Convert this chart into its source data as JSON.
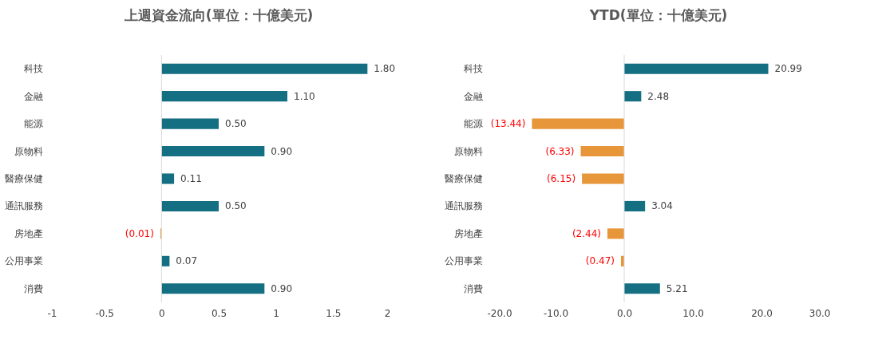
{
  "chart_data": [
    {
      "type": "bar",
      "orientation": "horizontal",
      "title": "上週資金流向(單位：十億美元)",
      "categories": [
        "科技",
        "金融",
        "能源",
        "原物料",
        "醫療保健",
        "通訊服務",
        "房地產",
        "公用事業",
        "消費"
      ],
      "values": [
        1.8,
        1.1,
        0.5,
        0.9,
        0.11,
        0.5,
        -0.01,
        0.07,
        0.9
      ],
      "colors": [
        "#156f82",
        "#156f82",
        "#156f82",
        "#156f82",
        "#156f82",
        "#156f82",
        "#e8963a",
        "#156f82",
        "#156f82"
      ],
      "value_labels": [
        "1.80",
        "1.10",
        "0.50",
        "0.90",
        "0.11",
        "0.50",
        "(0.01)",
        "0.07",
        "0.90"
      ],
      "xlim": [
        -1,
        2
      ],
      "xticks": [
        -1,
        -0.5,
        0,
        0.5,
        1,
        1.5,
        2
      ],
      "ref_lines": [
        {
          "axis": "x",
          "value": 0,
          "color": "#d9d9d9"
        }
      ]
    },
    {
      "type": "bar",
      "orientation": "horizontal",
      "title": "YTD(單位：十億美元)",
      "categories": [
        "科技",
        "金融",
        "能源",
        "原物料",
        "醫療保健",
        "通訊服務",
        "房地產",
        "公用事業",
        "消費"
      ],
      "values": [
        20.99,
        2.48,
        -13.44,
        -6.33,
        -6.15,
        3.04,
        -2.44,
        -0.47,
        5.21
      ],
      "colors": [
        "#156f82",
        "#156f82",
        "#e8963a",
        "#e8963a",
        "#e8963a",
        "#156f82",
        "#e8963a",
        "#e8963a",
        "#156f82"
      ],
      "value_labels": [
        "20.99",
        "2.48",
        "(13.44)",
        "(6.33)",
        "(6.15)",
        "3.04",
        "(2.44)",
        "(0.47)",
        "5.21"
      ],
      "xlim": [
        -20,
        30
      ],
      "xticks": [
        {
          "value": -20,
          "label": "-20.0"
        },
        {
          "value": -10,
          "label": "-10.0"
        },
        {
          "value": 0,
          "label": "0.0"
        },
        {
          "value": 10,
          "label": "10.0"
        },
        {
          "value": 20,
          "label": "20.0"
        },
        {
          "value": 30,
          "label": "30.0"
        }
      ],
      "ref_lines": [
        {
          "axis": "x",
          "value": 0,
          "color": "#d9d9d9"
        }
      ]
    }
  ]
}
